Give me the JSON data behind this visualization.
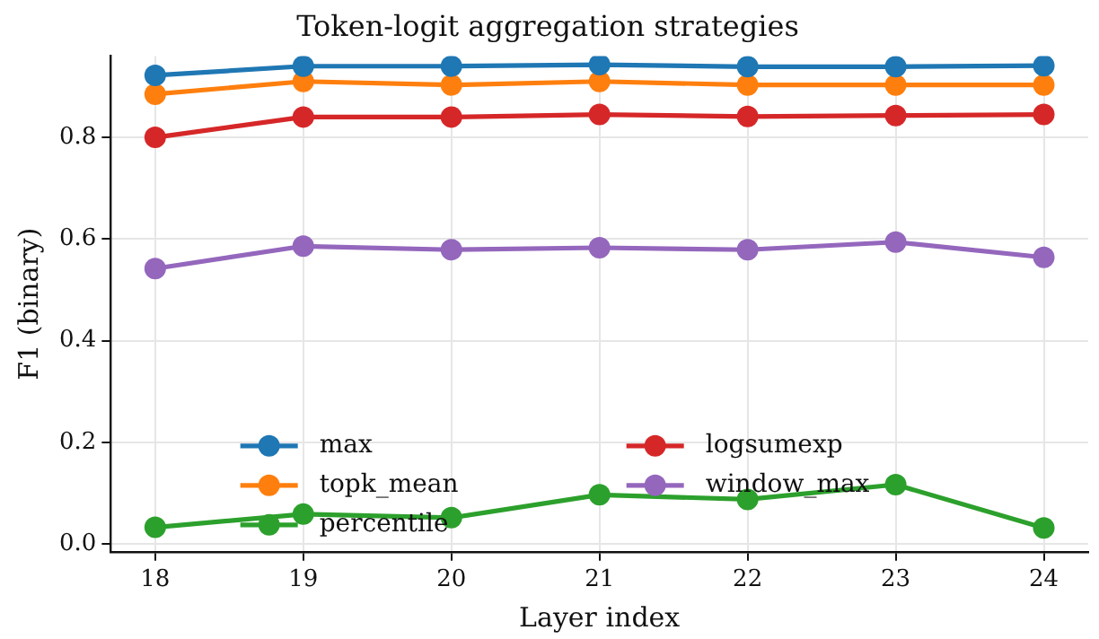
{
  "chart_data": {
    "type": "line",
    "title": "Token-logit aggregation strategies",
    "xlabel": "Layer index",
    "ylabel": "F1 (binary)",
    "x": [
      18,
      19,
      20,
      21,
      22,
      23,
      24
    ],
    "xlim": [
      17.7,
      24.3
    ],
    "xticks": [
      18,
      19,
      20,
      21,
      22,
      23,
      24
    ],
    "ylim": [
      -0.015,
      0.96
    ],
    "yticks": [
      {
        "value": 0,
        "label": "0.0"
      },
      0.2,
      0.4,
      0.6,
      0.8
    ],
    "grid": true,
    "legend": "bottom",
    "marker": "circle",
    "line_style": "solid",
    "series": [
      {
        "name": "max",
        "color": "#1f77b4",
        "values": [
          0.922,
          0.94,
          0.94,
          0.943,
          0.939,
          0.939,
          0.941
        ]
      },
      {
        "name": "topk_mean",
        "color": "#ff7f0e",
        "values": [
          0.885,
          0.91,
          0.903,
          0.91,
          0.903,
          0.903,
          0.903
        ]
      },
      {
        "name": "percentile",
        "color": "#2ca02c",
        "values": [
          0.033,
          0.059,
          0.052,
          0.097,
          0.088,
          0.117,
          0.032
        ]
      },
      {
        "name": "logsumexp",
        "color": "#d62728",
        "values": [
          0.8,
          0.84,
          0.84,
          0.845,
          0.841,
          0.843,
          0.845
        ]
      },
      {
        "name": "window_max",
        "color": "#9467bd",
        "values": [
          0.542,
          0.586,
          0.579,
          0.583,
          0.579,
          0.594,
          0.564
        ]
      }
    ]
  }
}
